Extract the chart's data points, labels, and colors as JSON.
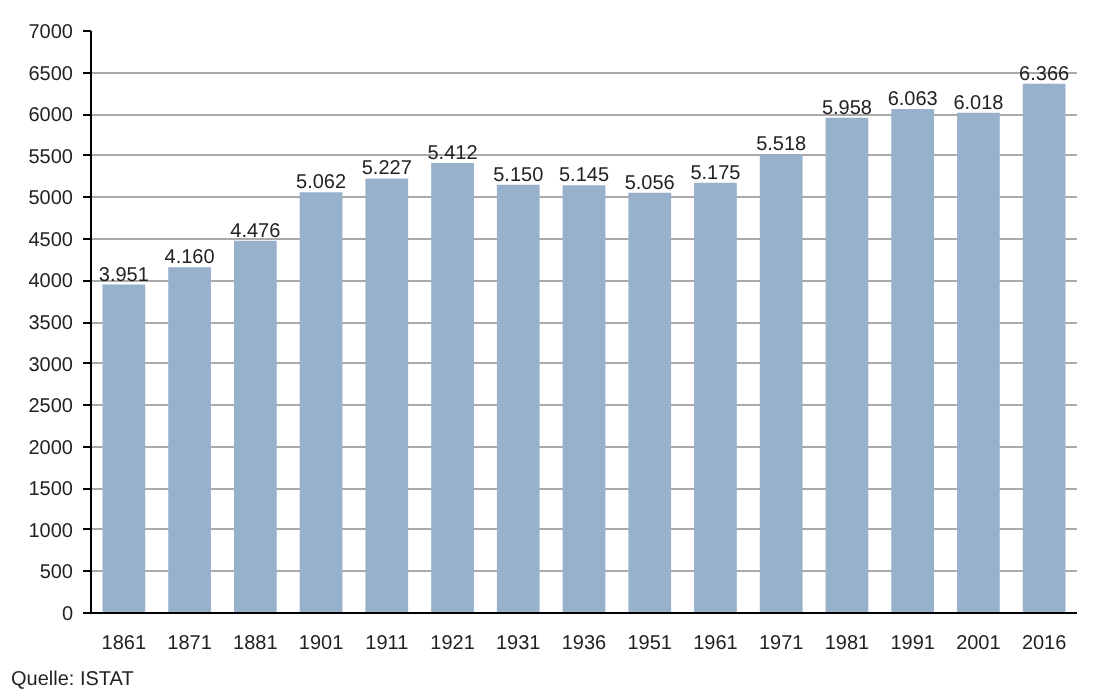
{
  "chart_data": {
    "type": "bar",
    "categories": [
      "1861",
      "1871",
      "1881",
      "1901",
      "1911",
      "1921",
      "1931",
      "1936",
      "1951",
      "1961",
      "1971",
      "1981",
      "1991",
      "2001",
      "2016"
    ],
    "values": [
      3951,
      4160,
      4476,
      5062,
      5227,
      5412,
      5150,
      5145,
      5056,
      5175,
      5518,
      5958,
      6063,
      6018,
      6366
    ],
    "value_labels": [
      "3.951",
      "4.160",
      "4.476",
      "5.062",
      "5.227",
      "5.412",
      "5.150",
      "5.145",
      "5.056",
      "5.175",
      "5.518",
      "5.958",
      "6.063",
      "6.018",
      "6.366"
    ],
    "color": "#98b1cb",
    "ylim": [
      0,
      7000
    ],
    "yticks": [
      0,
      500,
      1000,
      1500,
      2000,
      2500,
      3000,
      3500,
      4000,
      4500,
      5000,
      5500,
      6000,
      6500,
      7000
    ],
    "grid": "y",
    "annotations": [
      "Quelle: ISTAT"
    ]
  }
}
